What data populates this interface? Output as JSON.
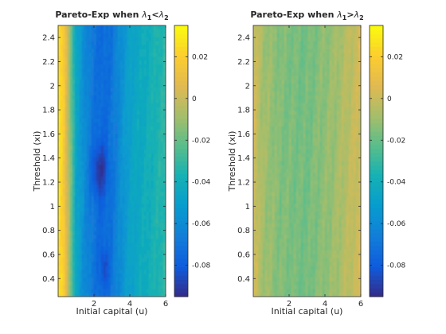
{
  "chart_data": [
    {
      "type": "heatmap",
      "title_prefix": "Pareto-Exp when ",
      "title_lhs": "λ",
      "title_lhs_sub": "1",
      "title_op": "<",
      "title_rhs": "λ",
      "title_rhs_sub": "2",
      "xlabel": "Initial capital (u)",
      "ylabel": "Threshold (xi)",
      "xlim": [
        0,
        6
      ],
      "ylim": [
        0.25,
        2.5
      ],
      "xticks": [
        2,
        4,
        6
      ],
      "yticks": [
        0.4,
        0.6,
        0.8,
        1,
        1.2,
        1.4,
        1.6,
        1.8,
        2,
        2.2,
        2.4
      ],
      "colorbar_range": [
        -0.095,
        0.035
      ],
      "colorbar_ticks": [
        0.02,
        0,
        -0.02,
        -0.04,
        -0.06,
        -0.08
      ],
      "colormap": "parula",
      "value_profile_by_u": [
        {
          "u": 0.0,
          "value": 0.028
        },
        {
          "u": 0.3,
          "value": 0.02
        },
        {
          "u": 0.7,
          "value": -0.015
        },
        {
          "u": 1.0,
          "value": -0.045
        },
        {
          "u": 1.5,
          "value": -0.06
        },
        {
          "u": 2.0,
          "value": -0.07
        },
        {
          "u": 2.5,
          "value": -0.075
        },
        {
          "u": 3.0,
          "value": -0.07
        },
        {
          "u": 3.5,
          "value": -0.058
        },
        {
          "u": 4.0,
          "value": -0.048
        },
        {
          "u": 5.0,
          "value": -0.04
        },
        {
          "u": 6.0,
          "value": -0.032
        }
      ],
      "minimum": {
        "u": 2.3,
        "xi": 1.3,
        "value": -0.092
      }
    },
    {
      "type": "heatmap",
      "title_prefix": "Pareto-Exp when ",
      "title_lhs": "λ",
      "title_lhs_sub": "1",
      "title_op": ">",
      "title_rhs": "λ",
      "title_rhs_sub": "2",
      "xlabel": "Initial capital (u)",
      "ylabel": "Threshold (xi)",
      "xlim": [
        0,
        6
      ],
      "ylim": [
        0.25,
        2.5
      ],
      "xticks": [
        2,
        4,
        6
      ],
      "yticks": [
        0.4,
        0.6,
        0.8,
        1,
        1.2,
        1.4,
        1.6,
        1.8,
        2,
        2.2,
        2.4
      ],
      "colorbar_range": [
        -0.095,
        0.035
      ],
      "colorbar_ticks": [
        0.02,
        0,
        -0.02,
        -0.04,
        -0.06,
        -0.08
      ],
      "colormap": "parula",
      "value_profile_by_u": [
        {
          "u": 0.0,
          "value": 0.003
        },
        {
          "u": 0.5,
          "value": -0.008
        },
        {
          "u": 1.5,
          "value": -0.015
        },
        {
          "u": 3.0,
          "value": -0.018
        },
        {
          "u": 4.5,
          "value": -0.01
        },
        {
          "u": 6.0,
          "value": 0.002
        }
      ]
    }
  ]
}
